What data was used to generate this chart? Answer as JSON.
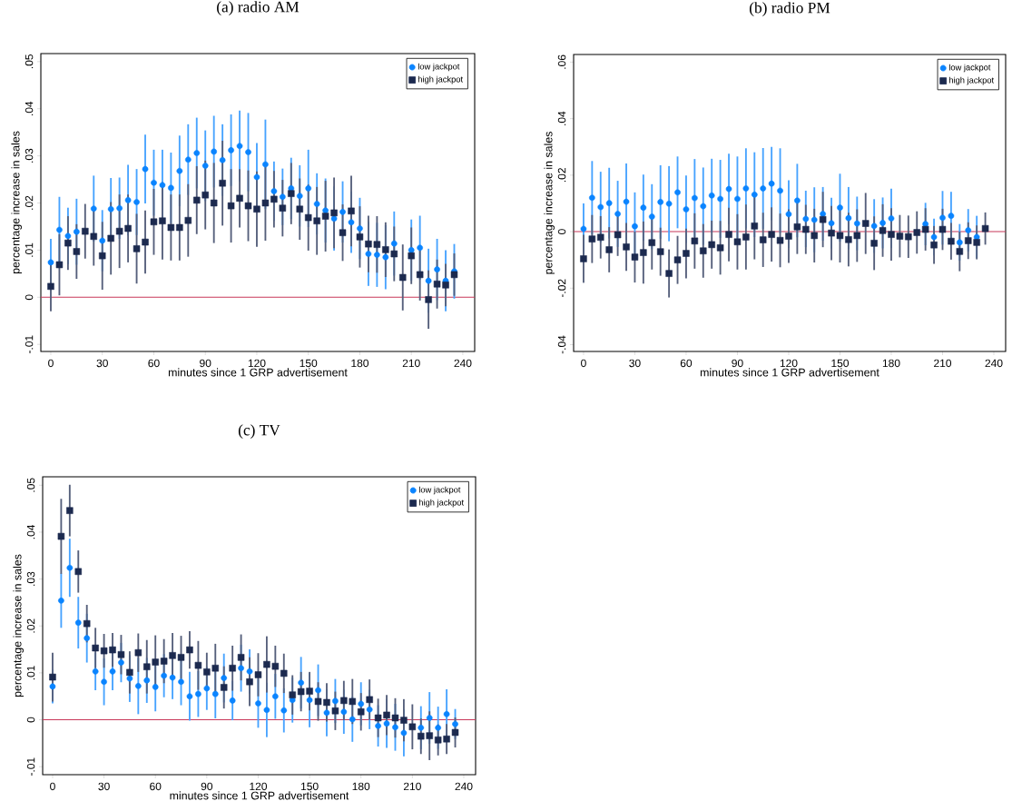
{
  "chart_data": [
    {
      "type": "scatter",
      "title": "(a) radio AM",
      "xlabel": "minutes since 1 GRP advertisement",
      "ylabel": "percentage increase in sales",
      "legend": "top right",
      "x": [
        0,
        5,
        10,
        15,
        20,
        25,
        30,
        35,
        40,
        45,
        50,
        55,
        60,
        65,
        70,
        75,
        80,
        85,
        90,
        95,
        100,
        105,
        110,
        115,
        120,
        125,
        130,
        135,
        140,
        145,
        150,
        155,
        160,
        165,
        170,
        175,
        180,
        185,
        190,
        195,
        200,
        205,
        210,
        215,
        220,
        225,
        230,
        235
      ],
      "xlim": [
        -5.8,
        246.9
      ],
      "ylim": [
        -0.0115,
        0.0517
      ],
      "xticks": [
        0,
        30,
        60,
        90,
        120,
        150,
        180,
        210,
        240
      ],
      "yticks": [
        {
          "value": -0.01,
          "label": "-.01"
        },
        0,
        {
          "value": 0.01,
          "label": ".01"
        },
        {
          "value": 0.02,
          "label": ".02"
        },
        {
          "value": 0.03,
          "label": ".03"
        },
        {
          "value": 0.04,
          "label": ".04"
        },
        {
          "value": 0.05,
          "label": ".05"
        }
      ],
      "ref_lines": [
        {
          "axis": "y",
          "value": 0,
          "color": "#c8385a"
        }
      ],
      "series": [
        {
          "name": "low jackpot",
          "color": "#0a84ff",
          "marker": "circle",
          "values": [
            0.0074,
            0.0143,
            0.013,
            0.0139,
            null,
            0.0188,
            0.012,
            0.0187,
            0.0189,
            0.0206,
            0.0202,
            0.0272,
            0.0243,
            0.0238,
            0.0232,
            0.0268,
            0.0292,
            0.0306,
            0.0279,
            0.0309,
            0.0291,
            0.0312,
            0.0321,
            0.0308,
            0.0255,
            0.0282,
            0.0225,
            0.0213,
            0.0231,
            0.0215,
            0.0231,
            0.0198,
            0.0184,
            0.0167,
            0.0181,
            0.0159,
            0.0146,
            0.0092,
            0.009,
            0.0085,
            0.0114,
            null,
            0.01,
            0.0105,
            0.0035,
            0.0059,
            0.0035,
            0.0055
          ],
          "errors": [
            0.005,
            0.007,
            0.006,
            0.007,
            null,
            0.007,
            0.0065,
            0.0066,
            0.0065,
            0.0075,
            0.007,
            0.0073,
            0.007,
            0.0075,
            0.0075,
            0.0075,
            0.0075,
            0.0075,
            0.0075,
            0.0076,
            0.0076,
            0.0076,
            0.0075,
            0.0083,
            0.0072,
            0.0095,
            0.0063,
            0.006,
            0.0065,
            0.0065,
            0.0082,
            0.0065,
            0.0068,
            0.0068,
            0.0065,
            0.0065,
            0.0065,
            0.0068,
            0.0068,
            0.0068,
            0.0068,
            null,
            0.0065,
            0.0068,
            0.0068,
            0.0065,
            0.0065,
            0.0058
          ]
        },
        {
          "name": "high jackpot",
          "color": "#1c2a4f",
          "marker": "square",
          "values": [
            0.0023,
            0.0069,
            0.0115,
            0.0097,
            0.014,
            0.0129,
            0.0088,
            0.0125,
            0.014,
            0.0146,
            0.0103,
            0.0117,
            0.016,
            0.0162,
            0.0148,
            0.0148,
            0.0163,
            0.0206,
            0.0217,
            0.02,
            0.0242,
            0.0194,
            0.021,
            0.0194,
            0.0187,
            0.02,
            0.0208,
            0.0189,
            0.022,
            0.0187,
            0.0169,
            0.0162,
            0.0172,
            0.0179,
            0.0137,
            0.0183,
            0.0128,
            0.0113,
            0.0112,
            0.0101,
            0.0092,
            0.0042,
            0.0088,
            0.0048,
            -0.0005,
            0.0028,
            0.0026,
            0.0048
          ],
          "errors": [
            0.0053,
            0.0065,
            0.0057,
            0.0058,
            0.0058,
            0.0062,
            0.0072,
            0.0077,
            0.0078,
            0.0072,
            0.0074,
            0.0067,
            0.007,
            0.0082,
            0.007,
            0.007,
            0.0077,
            0.0072,
            0.0073,
            0.0085,
            0.009,
            0.0078,
            0.0062,
            0.0075,
            0.008,
            0.008,
            0.006,
            0.006,
            0.0065,
            0.0065,
            0.007,
            0.0072,
            0.0075,
            0.0075,
            0.006,
            0.0075,
            0.0065,
            0.006,
            0.006,
            0.0058,
            0.0058,
            0.007,
            0.006,
            0.0055,
            0.0062,
            0.0052,
            0.0045,
            0.0045
          ]
        }
      ]
    },
    {
      "type": "scatter",
      "title": "(b) radio PM",
      "xlabel": "minutes since 1 GRP advertisement",
      "ylabel": "percentage increase in sales",
      "legend": "top right",
      "x": [
        0,
        5,
        10,
        15,
        20,
        25,
        30,
        35,
        40,
        45,
        50,
        55,
        60,
        65,
        70,
        75,
        80,
        85,
        90,
        95,
        100,
        105,
        110,
        115,
        120,
        125,
        130,
        135,
        140,
        145,
        150,
        155,
        160,
        165,
        170,
        175,
        180,
        185,
        190,
        195,
        200,
        205,
        210,
        215,
        220,
        225,
        230,
        235
      ],
      "xlim": [
        -5.8,
        246.9
      ],
      "ylim": [
        -0.0424,
        0.0627
      ],
      "xticks": [
        0,
        30,
        60,
        90,
        120,
        150,
        180,
        210,
        240
      ],
      "yticks": [
        {
          "value": -0.04,
          "label": "-.04"
        },
        {
          "value": -0.02,
          "label": "-.02"
        },
        0,
        {
          "value": 0.02,
          "label": ".02"
        },
        {
          "value": 0.04,
          "label": ".04"
        },
        {
          "value": 0.06,
          "label": ".06"
        }
      ],
      "ref_lines": [
        {
          "axis": "y",
          "value": 0,
          "color": "#c8385a"
        }
      ],
      "series": [
        {
          "name": "low jackpot",
          "color": "#0a84ff",
          "marker": "circle",
          "values": [
            0.001,
            0.012,
            0.0087,
            0.0101,
            0.0063,
            0.0106,
            0.0019,
            0.0085,
            0.0053,
            0.0105,
            0.0099,
            0.0139,
            0.0079,
            0.0119,
            0.009,
            0.0128,
            0.0116,
            0.0151,
            0.0116,
            0.0153,
            0.0131,
            0.0153,
            0.017,
            0.0145,
            0.0062,
            0.011,
            0.0045,
            0.0042,
            0.0063,
            0.003,
            0.0085,
            0.0048,
            0.0029,
            null,
            0.002,
            0.0031,
            0.0047,
            null,
            null,
            null,
            0.0027,
            -0.0019,
            0.0049,
            0.0056,
            -0.0038,
            0.0005,
            -0.0019,
            null
          ],
          "errors": [
            0.009,
            0.013,
            0.0125,
            0.0125,
            0.0117,
            0.0135,
            0.012,
            0.0117,
            0.0115,
            0.013,
            0.0133,
            0.0127,
            0.012,
            0.0138,
            0.0137,
            0.013,
            0.0138,
            0.0125,
            0.015,
            0.0142,
            0.015,
            0.0143,
            0.013,
            0.015,
            0.012,
            0.013,
            0.01,
            0.0115,
            0.0095,
            0.009,
            0.012,
            0.011,
            0.0095,
            null,
            0.0095,
            0.009,
            0.0105,
            null,
            null,
            null,
            0.0075,
            0.0065,
            0.0095,
            0.0085,
            0.0065,
            0.0075,
            0.0075,
            null
          ]
        },
        {
          "name": "high jackpot",
          "color": "#1c2a4f",
          "marker": "square",
          "values": [
            -0.0096,
            -0.0026,
            -0.002,
            -0.0064,
            -0.0011,
            -0.0054,
            -0.009,
            -0.0074,
            -0.0039,
            -0.0071,
            -0.0148,
            -0.01,
            -0.0077,
            -0.0033,
            -0.0068,
            -0.0046,
            -0.0057,
            -0.001,
            -0.0036,
            -0.0019,
            0.002,
            -0.0029,
            -0.001,
            -0.0031,
            -0.0016,
            0.0017,
            0.0008,
            -0.0014,
            0.0043,
            -0.0005,
            -0.0014,
            -0.0028,
            -0.0014,
            0.0029,
            -0.0041,
            0.0004,
            -0.001,
            -0.0016,
            -0.0018,
            -0.0003,
            0.0008,
            -0.0047,
            0.0008,
            -0.0034,
            -0.007,
            -0.0032,
            -0.0038,
            0.0011
          ],
          "errors": [
            0.0085,
            0.0085,
            0.0075,
            0.008,
            0.0075,
            0.0085,
            0.009,
            0.011,
            0.0095,
            0.0085,
            0.0085,
            0.0085,
            0.0088,
            0.0098,
            0.0095,
            0.0085,
            0.0095,
            0.0095,
            0.0098,
            0.0115,
            0.0118,
            0.0096,
            0.0096,
            0.0095,
            0.0095,
            0.0096,
            0.0087,
            0.0095,
            0.0098,
            0.0096,
            0.0095,
            0.0095,
            0.0093,
            0.0108,
            0.0095,
            0.0093,
            0.0093,
            0.0075,
            0.0075,
            0.0075,
            0.0075,
            0.0067,
            0.0073,
            0.0065,
            0.007,
            0.0065,
            0.006,
            0.0057
          ]
        }
      ]
    },
    {
      "type": "scatter",
      "title": "(c) TV",
      "xlabel": "minutes since 1 GRP advertisement",
      "ylabel": "percentage increase in sales",
      "legend": "top right",
      "x": [
        0,
        5,
        10,
        15,
        20,
        25,
        30,
        35,
        40,
        45,
        50,
        55,
        60,
        65,
        70,
        75,
        80,
        85,
        90,
        95,
        100,
        105,
        110,
        115,
        120,
        125,
        130,
        135,
        140,
        145,
        150,
        155,
        160,
        165,
        170,
        175,
        180,
        185,
        190,
        195,
        200,
        205,
        210,
        215,
        220,
        225,
        230,
        235
      ],
      "xlim": [
        -5.8,
        246.9
      ],
      "ylim": [
        -0.0117,
        0.0518
      ],
      "xticks": [
        0,
        30,
        60,
        90,
        120,
        150,
        180,
        210,
        240
      ],
      "yticks": [
        {
          "value": -0.01,
          "label": "-.01"
        },
        0,
        {
          "value": 0.01,
          "label": ".01"
        },
        {
          "value": 0.02,
          "label": ".02"
        },
        {
          "value": 0.03,
          "label": ".03"
        },
        {
          "value": 0.04,
          "label": ".04"
        },
        {
          "value": 0.05,
          "label": ".05"
        }
      ],
      "ref_lines": [
        {
          "axis": "y",
          "value": 0,
          "color": "#c8385a"
        }
      ],
      "series": [
        {
          "name": "low jackpot",
          "color": "#0a84ff",
          "marker": "circle",
          "values": [
            0.0071,
            0.0254,
            0.0324,
            0.0207,
            0.0174,
            0.0103,
            0.0081,
            0.0103,
            0.0122,
            0.0088,
            0.0072,
            0.0084,
            0.007,
            0.0094,
            0.009,
            0.0081,
            0.005,
            0.0055,
            0.0067,
            0.0055,
            0.0089,
            0.0041,
            0.011,
            0.0103,
            0.0035,
            0.0021,
            0.005,
            0.002,
            0.0042,
            0.0079,
            0.0042,
            0.0063,
            0.0015,
            0.004,
            0.0017,
            0.0001,
            0.0034,
            0.0022,
            -0.0013,
            -0.0008,
            -0.0016,
            -0.0028,
            null,
            -0.0017,
            0.0004,
            -0.0017,
            0.0012,
            -0.0009
          ],
          "errors": [
            0.0036,
            0.0058,
            0.0062,
            0.0055,
            0.0052,
            0.004,
            0.005,
            0.004,
            0.0042,
            0.005,
            0.006,
            0.0048,
            0.0052,
            0.0046,
            0.0046,
            0.005,
            0.0052,
            0.0049,
            0.0046,
            0.0052,
            0.0052,
            0.0042,
            0.005,
            0.0047,
            0.0052,
            0.0058,
            0.0048,
            0.0047,
            0.0048,
            0.0055,
            0.0058,
            0.0055,
            0.005,
            0.0047,
            0.0047,
            0.0048,
            0.0046,
            0.0042,
            0.0044,
            0.0052,
            0.005,
            0.005,
            null,
            0.0046,
            0.0055,
            0.0045,
            0.0053,
            0.0032
          ]
        },
        {
          "name": "high jackpot",
          "color": "#1c2a4f",
          "marker": "square",
          "values": [
            0.0091,
            0.0391,
            0.0446,
            0.0316,
            0.0205,
            0.0153,
            0.0147,
            0.0149,
            0.0139,
            0.0101,
            0.0143,
            0.0113,
            0.0123,
            0.0125,
            0.0137,
            0.0133,
            0.0149,
            0.0116,
            0.0102,
            0.011,
            0.0069,
            0.011,
            0.0133,
            0.0081,
            0.0096,
            0.0118,
            0.0114,
            0.0099,
            0.0053,
            0.006,
            0.0061,
            0.0039,
            0.0037,
            0.0019,
            0.0041,
            0.0039,
            0.0017,
            0.0043,
            0.0004,
            0.001,
            0.0004,
            -0.0001,
            -0.0015,
            -0.0035,
            -0.0034,
            -0.0043,
            -0.0041,
            -0.0027
          ],
          "errors": [
            0.0052,
            0.008,
            0.0055,
            0.0045,
            0.004,
            0.0043,
            0.0036,
            0.0036,
            0.0042,
            0.0045,
            0.0041,
            0.0057,
            0.0057,
            0.0047,
            0.0048,
            0.0046,
            0.004,
            0.0052,
            0.0041,
            0.0052,
            0.0045,
            0.0048,
            0.0049,
            0.0052,
            0.0046,
            0.006,
            0.0044,
            0.0042,
            0.0042,
            0.0042,
            0.0041,
            0.0041,
            0.0041,
            0.0041,
            0.0042,
            0.0048,
            0.004,
            0.0043,
            0.0041,
            0.0043,
            0.0042,
            0.0045,
            0.0048,
            0.0038,
            0.0052,
            0.0033,
            0.0032,
            0.0032
          ]
        }
      ]
    }
  ]
}
